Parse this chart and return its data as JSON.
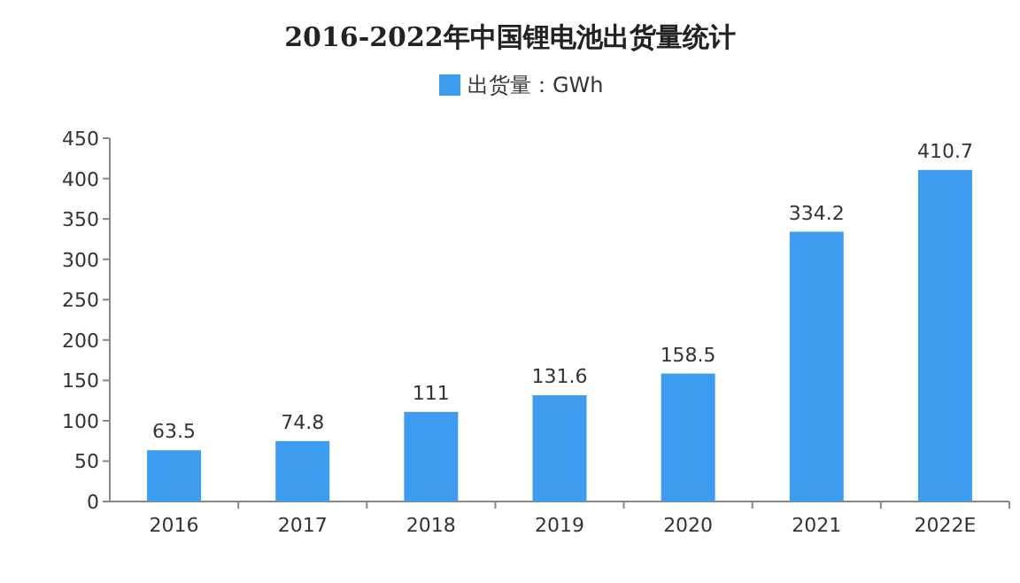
{
  "chart_data": {
    "type": "bar",
    "title": "2016-2022年中国锂电池出货量统计",
    "categories": [
      "2016",
      "2017",
      "2018",
      "2019",
      "2020",
      "2021",
      "2022E"
    ],
    "series": [
      {
        "name": "出货量：GWh",
        "color": "#3d9cf0",
        "values": [
          63.5,
          74.8,
          111,
          131.6,
          158.5,
          334.2,
          410.7
        ]
      }
    ],
    "ylim": [
      0,
      450
    ],
    "yticks": [
      0,
      50,
      100,
      150,
      200,
      250,
      300,
      350,
      400,
      450
    ],
    "legend": "top",
    "data_labels": true
  }
}
